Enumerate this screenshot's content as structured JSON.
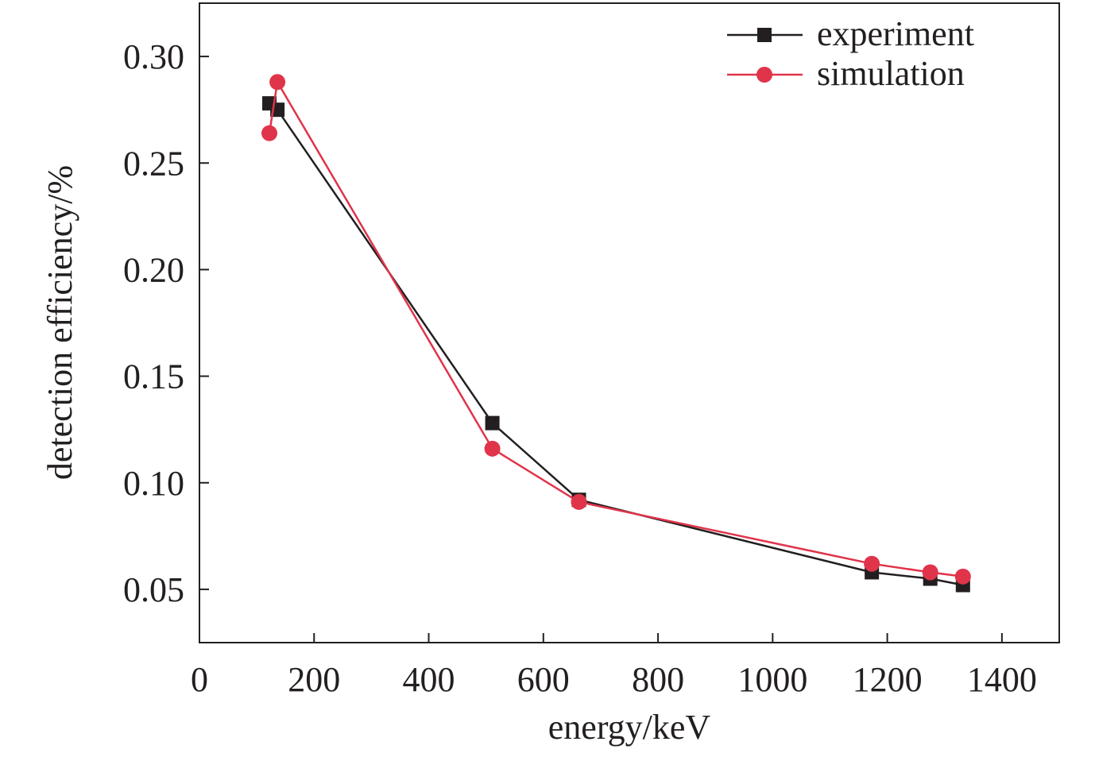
{
  "chart_data": {
    "type": "line",
    "title": "",
    "xlabel": "energy/keV",
    "ylabel": "detection efficiency/%",
    "xlim": [
      0,
      1500
    ],
    "ylim": [
      0.025,
      0.325
    ],
    "x_ticks": [
      0,
      200,
      400,
      600,
      800,
      1000,
      1200,
      1400
    ],
    "y_ticks": [
      0.05,
      0.1,
      0.15,
      0.2,
      0.25,
      0.3
    ],
    "x_tick_labels": [
      "0",
      "200",
      "400",
      "600",
      "800",
      "1000",
      "1200",
      "1400"
    ],
    "y_tick_labels": [
      "0.05",
      "0.10",
      "0.15",
      "0.20",
      "0.25",
      "0.30"
    ],
    "grid": false,
    "legend_position": "top-right",
    "series": [
      {
        "name": "experiment",
        "marker": "square",
        "color": "#231f20",
        "x": [
          122,
          136,
          511,
          662,
          1173,
          1275,
          1332
        ],
        "y": [
          0.278,
          0.275,
          0.128,
          0.092,
          0.058,
          0.055,
          0.052
        ]
      },
      {
        "name": "simulation",
        "marker": "circle",
        "color": "#e0344a",
        "x": [
          122,
          136,
          511,
          662,
          1173,
          1275,
          1332
        ],
        "y": [
          0.264,
          0.288,
          0.116,
          0.091,
          0.062,
          0.058,
          0.056
        ]
      }
    ]
  }
}
